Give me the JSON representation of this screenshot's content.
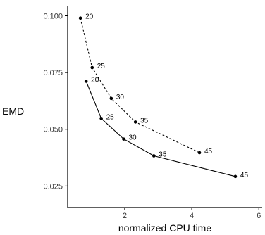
{
  "chart_data": {
    "type": "line",
    "xlabel": "normalized CPU time",
    "ylabel": "EMD",
    "xlim": [
      0.3,
      6.1
    ],
    "ylim": [
      0.0155,
      0.1045
    ],
    "xticks": [
      2,
      4,
      6
    ],
    "yticks": [
      0.025,
      0.05,
      0.075,
      0.1
    ],
    "ytick_labels": [
      "0.025",
      "0.050",
      "0.075",
      "0.100"
    ],
    "xtick_labels": [
      "2",
      "4",
      "6"
    ],
    "grid": false,
    "series": [
      {
        "style": "solid",
        "color": "#000000",
        "points": [
          {
            "x": 0.85,
            "y": 0.0712,
            "label": "20"
          },
          {
            "x": 1.3,
            "y": 0.0548,
            "label": "25"
          },
          {
            "x": 1.97,
            "y": 0.0457,
            "label": "30"
          },
          {
            "x": 2.87,
            "y": 0.0383,
            "label": "35"
          },
          {
            "x": 5.3,
            "y": 0.0292,
            "label": "45"
          }
        ]
      },
      {
        "style": "dotted",
        "color": "#000000",
        "points": [
          {
            "x": 0.68,
            "y": 0.099,
            "label": "20"
          },
          {
            "x": 1.03,
            "y": 0.0772,
            "label": "25"
          },
          {
            "x": 1.6,
            "y": 0.0636,
            "label": "30"
          },
          {
            "x": 2.32,
            "y": 0.0532,
            "label": "35"
          },
          {
            "x": 4.23,
            "y": 0.0397,
            "label": "45"
          }
        ]
      }
    ]
  }
}
